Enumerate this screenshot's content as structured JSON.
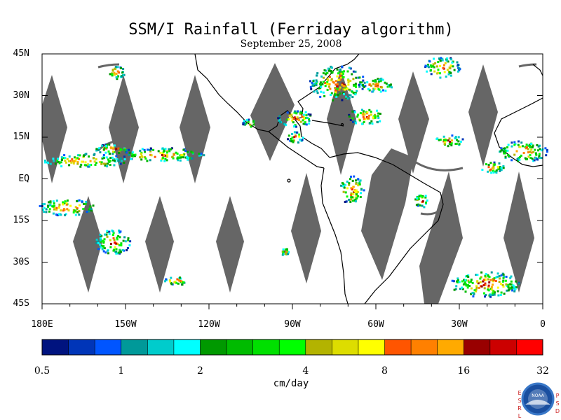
{
  "title": "SSM/I Rainfall (Ferriday algorithm)",
  "subtitle": "September 25, 2008",
  "map": {
    "lon_range": [
      -180,
      0
    ],
    "lat_range": [
      -45,
      45
    ],
    "y_ticks": [
      {
        "lat": 45,
        "label": "45N"
      },
      {
        "lat": 30,
        "label": "30N"
      },
      {
        "lat": 15,
        "label": "15N"
      },
      {
        "lat": 0,
        "label": "EQ"
      },
      {
        "lat": -15,
        "label": "15S"
      },
      {
        "lat": -30,
        "label": "30S"
      },
      {
        "lat": -45,
        "label": "45S"
      }
    ],
    "x_ticks": [
      {
        "lon": -180,
        "label": "180E"
      },
      {
        "lon": -150,
        "label": "150W"
      },
      {
        "lon": -120,
        "label": "120W"
      },
      {
        "lon": -90,
        "label": "90W"
      },
      {
        "lon": -60,
        "label": "60W"
      },
      {
        "lon": -30,
        "label": "30W"
      },
      {
        "lon": 0,
        "label": "0"
      }
    ],
    "colors": {
      "land_outline": "#000000",
      "swath_gap": "#666666",
      "frame": "#000000"
    }
  },
  "colorbar": {
    "units": "cm/day",
    "colors": [
      "#00137f",
      "#0035b8",
      "#0055ff",
      "#009999",
      "#00cccc",
      "#00ffff",
      "#009900",
      "#00bb00",
      "#00e000",
      "#00ff00",
      "#b3b300",
      "#dddd00",
      "#ffff00",
      "#ff5500",
      "#ff8000",
      "#ffaa00",
      "#990000",
      "#cc0000",
      "#ff0000"
    ],
    "tick_labels": [
      {
        "label": "0.5",
        "index": 0
      },
      {
        "label": "1",
        "index": 3
      },
      {
        "label": "2",
        "index": 6
      },
      {
        "label": "4",
        "index": 10
      },
      {
        "label": "8",
        "index": 13
      },
      {
        "label": "16",
        "index": 16
      },
      {
        "label": "32",
        "index": 19
      }
    ]
  },
  "logo": {
    "left_letters": [
      "E",
      "S",
      "R",
      "L"
    ],
    "right_letters": [
      "P",
      "S",
      "D"
    ],
    "center_text": "NOAA"
  }
}
